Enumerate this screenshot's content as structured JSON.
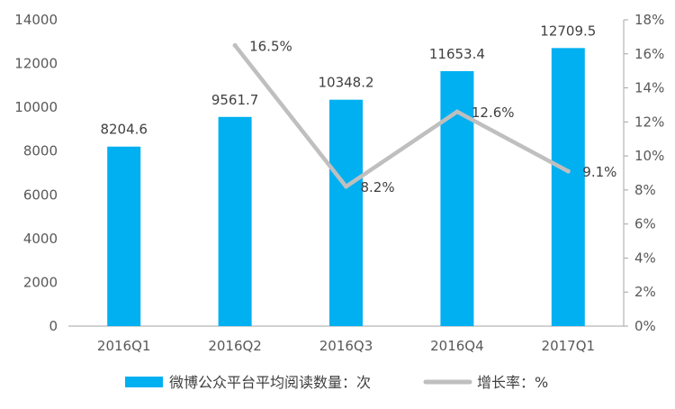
{
  "colors": {
    "bar": "#00b0f0",
    "line": "#bfbfbf",
    "axis": "#a6a6a6",
    "text": "#595959"
  },
  "chart_data": {
    "type": "bar",
    "categories": [
      "2016Q1",
      "2016Q2",
      "2016Q3",
      "2016Q4",
      "2017Q1"
    ],
    "series": [
      {
        "name": "微博公众平台平均阅读数量：次",
        "type": "bar",
        "axis": "left",
        "values": [
          8204.6,
          9561.7,
          10348.2,
          11653.4,
          12709.5
        ],
        "labels": [
          "8204.6",
          "9561.7",
          "10348.2",
          "11653.4",
          "12709.5"
        ]
      },
      {
        "name": "增长率：%",
        "type": "line",
        "axis": "right",
        "values": [
          null,
          16.5,
          8.2,
          12.6,
          9.1
        ],
        "labels": [
          "",
          "16.5%",
          "8.2%",
          "12.6%",
          "9.1%"
        ]
      }
    ],
    "y_left": {
      "min": 0,
      "max": 14000,
      "step": 2000,
      "ticks": [
        "0",
        "2000",
        "4000",
        "6000",
        "8000",
        "10000",
        "12000",
        "14000"
      ]
    },
    "y_right": {
      "min": 0,
      "max": 18,
      "step": 2,
      "ticks": [
        "0%",
        "2%",
        "4%",
        "6%",
        "8%",
        "10%",
        "12%",
        "14%",
        "16%",
        "18%"
      ]
    },
    "legend_position": "bottom",
    "grid": false
  }
}
